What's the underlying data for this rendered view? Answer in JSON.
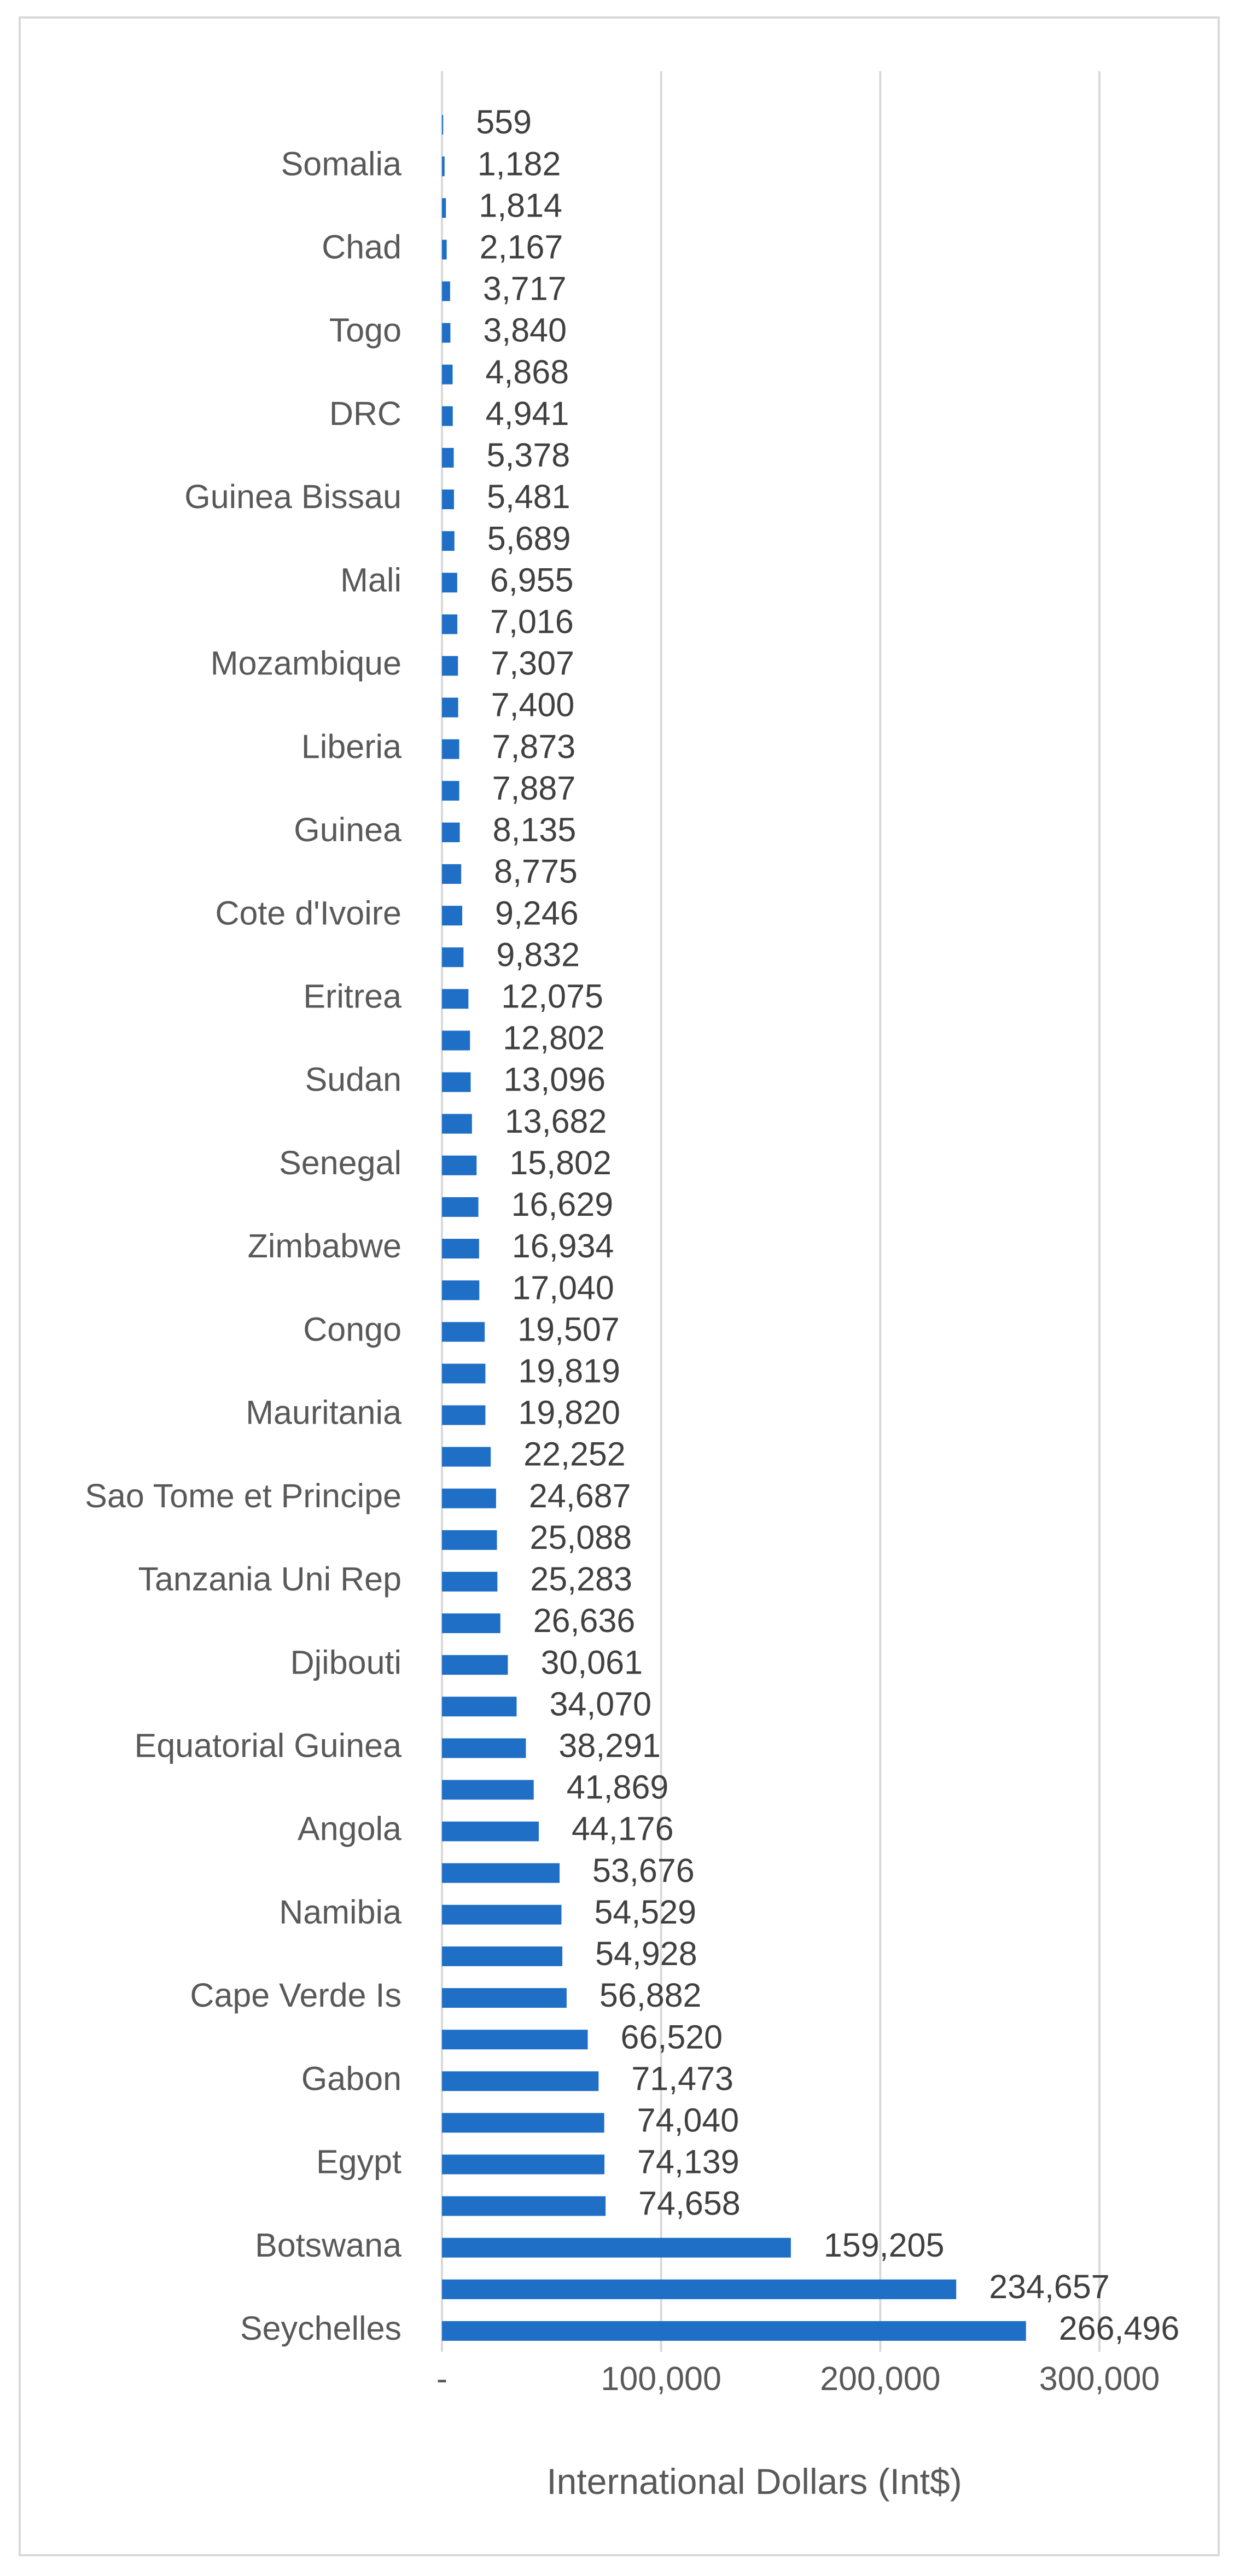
{
  "chart_data": {
    "type": "bar",
    "orientation": "horizontal",
    "title": "",
    "xlabel": "International Dollars (Int$)",
    "ylabel": "",
    "xlim": [
      0,
      300000
    ],
    "x_ticks": [
      0,
      100000,
      200000,
      300000
    ],
    "x_tick_labels": [
      "-",
      "100,000",
      "200,000",
      "300,000"
    ],
    "grid": true,
    "legend": "none",
    "categories": [
      "",
      "Somalia",
      "",
      "Chad",
      "",
      "Togo",
      "",
      "DRC",
      "",
      "Guinea Bissau",
      "",
      "Mali",
      "",
      "Mozambique",
      "",
      "Liberia",
      "",
      "Guinea",
      "",
      "Cote d'Ivoire",
      "",
      "Eritrea",
      "",
      "Sudan",
      "",
      "Senegal",
      "",
      "Zimbabwe",
      "",
      "Congo",
      "",
      "Mauritania",
      "",
      "Sao Tome et Principe",
      "",
      "Tanzania Uni Rep",
      "",
      "Djibouti",
      "",
      "Equatorial Guinea",
      "",
      "Angola",
      "",
      "Namibia",
      "",
      "Cape Verde Is",
      "",
      "Gabon",
      "",
      "Egypt",
      "",
      "Botswana",
      "",
      "Seychelles"
    ],
    "values": [
      559,
      1182,
      1814,
      2167,
      3717,
      3840,
      4868,
      4941,
      5378,
      5481,
      5689,
      6955,
      7016,
      7307,
      7400,
      7873,
      7887,
      8135,
      8775,
      9246,
      9832,
      12075,
      12802,
      13096,
      13682,
      15802,
      16629,
      16934,
      17040,
      19507,
      19819,
      19820,
      22252,
      24687,
      25088,
      25283,
      26636,
      30061,
      34070,
      38291,
      41869,
      44176,
      53676,
      54529,
      54928,
      56882,
      66520,
      71473,
      74040,
      74139,
      74658,
      159205,
      234657,
      266496
    ],
    "value_labels": [
      "559",
      "1,182",
      "1,814",
      "2,167",
      "3,717",
      "3,840",
      "4,868",
      "4,941",
      "5,378",
      "5,481",
      "5,689",
      "6,955",
      "7,016",
      "7,307",
      "7,400",
      "7,873",
      "7,887",
      "8,135",
      "8,775",
      "9,246",
      "9,832",
      "12,075",
      "12,802",
      "13,096",
      "13,682",
      "15,802",
      "16,629",
      "16,934",
      "17,040",
      "19,507",
      "19,819",
      "19,820",
      "22,252",
      "24,687",
      "25,088",
      "25,283",
      "26,636",
      "30,061",
      "34,070",
      "38,291",
      "41,869",
      "44,176",
      "53,676",
      "54,529",
      "54,928",
      "56,882",
      "66,520",
      "71,473",
      "74,040",
      "74,139",
      "74,658",
      "159,205",
      "234,657",
      "266,496"
    ],
    "colors": {
      "bar": "#1f6fc6",
      "grid": "#d9d9d9",
      "text": "#595959",
      "value_text": "#404040",
      "border": "#d9d9d9"
    }
  }
}
